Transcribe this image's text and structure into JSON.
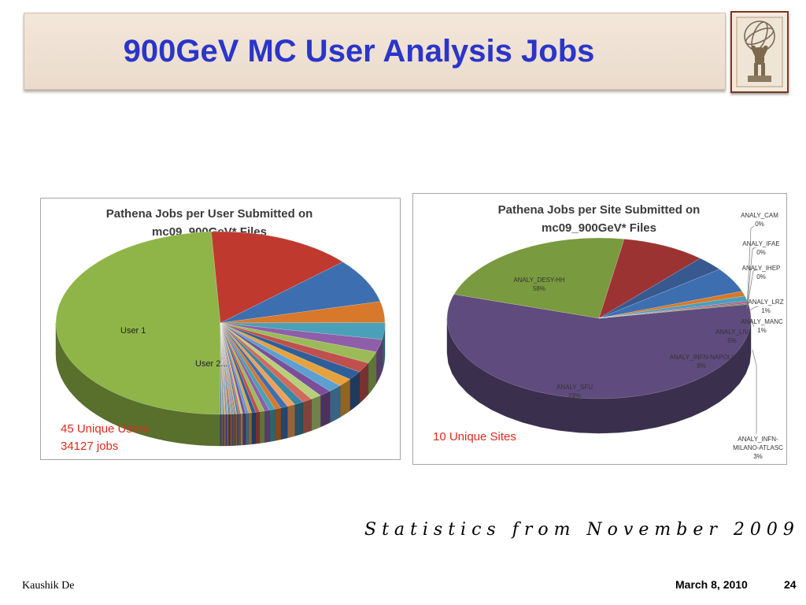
{
  "slide": {
    "title": "900GeV MC User Analysis Jobs",
    "statistics_note": "Statistics from November 2009",
    "author": "Kaushik De",
    "date": "March 8, 2010",
    "page_number": "24"
  },
  "chart_data": [
    {
      "type": "pie",
      "title_lines": [
        "Pathena Jobs per User Submitted on",
        "mc09_900GeV* Files"
      ],
      "labeled_slices": [
        {
          "label": "User 1",
          "value": 50.0,
          "color": "#8fb548"
        },
        {
          "label": "User 2...",
          "value": 14.5,
          "color": "#c0392f"
        }
      ],
      "other_slice_values": [
        8.0,
        3.8,
        3.0,
        2.3,
        2.1,
        1.8,
        1.6,
        1.5,
        1.4,
        1.2,
        1.1,
        1.0,
        0.9,
        0.8,
        0.7,
        0.6,
        0.6,
        0.5,
        0.5,
        0.4,
        0.4,
        0.3,
        0.3,
        0.3,
        0.2,
        0.2,
        0.2,
        0.1,
        0.1,
        0.1,
        0.1,
        0.1,
        0.1,
        0.1,
        0.1,
        0.1,
        0.1,
        0.1,
        0.1,
        0.1,
        0.1,
        0.1,
        0.1
      ],
      "annotation_lines": [
        "45 Unique Users",
        "34127 jobs"
      ]
    },
    {
      "type": "pie",
      "title_lines": [
        "Pathena Jobs per Site Submitted on",
        "mc09_900GeV* Files"
      ],
      "slices": [
        {
          "label": "ANALY_DESY-HH",
          "pct": "58%",
          "value": 58,
          "color": "#5f4b7d"
        },
        {
          "label": "ANALY_SFU",
          "pct": "23%",
          "value": 23,
          "color": "#7a9a3f"
        },
        {
          "label": "ANALY_INFN-NAPOLI",
          "pct": "9%",
          "value": 9,
          "color": "#9c3333"
        },
        {
          "label": "ANALY_INFN-MILANO-ATLASC",
          "label_lines": [
            "ANALY_INFN-",
            "MILANO-ATLASC"
          ],
          "pct": "3%",
          "value": 3,
          "color": "#37598f"
        },
        {
          "label": "ANALY_LIV",
          "pct": "5%",
          "value": 5,
          "color": "#3d6fb0"
        },
        {
          "label": "ANALY_MANC",
          "pct": "1%",
          "value": 1,
          "color": "#d7782a"
        },
        {
          "label": "ANALY_LRZ",
          "pct": "1%",
          "value": 1,
          "color": "#4aa0b8"
        },
        {
          "label": "ANALY_IHEP",
          "pct": "0%",
          "value": 0.3,
          "color": "#8e5fa8"
        },
        {
          "label": "ANALY_IFAE",
          "pct": "0%",
          "value": 0.2,
          "color": "#b34747"
        },
        {
          "label": "ANALY_CAM",
          "pct": "0%",
          "value": 0.2,
          "color": "#5a8f4a"
        }
      ],
      "annotation": "10 Unique Sites"
    }
  ]
}
